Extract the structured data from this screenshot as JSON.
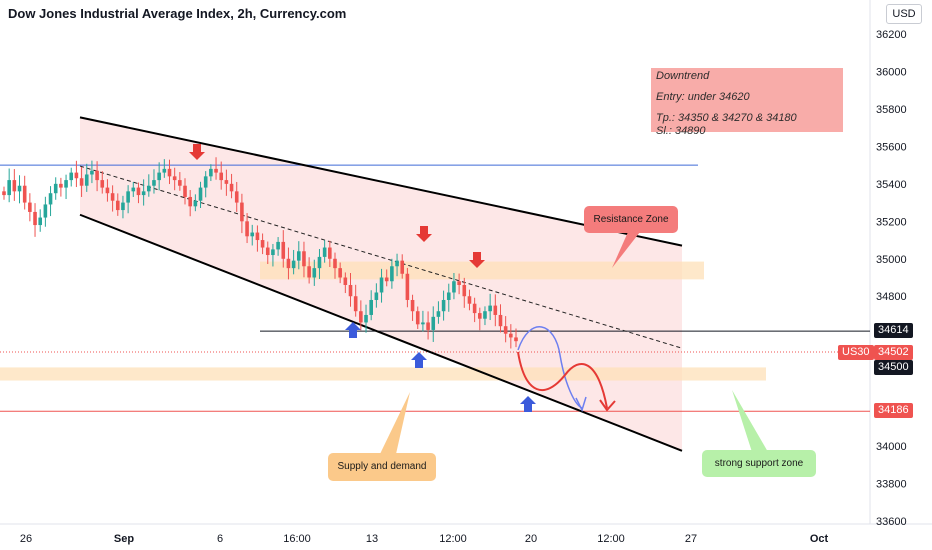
{
  "header": {
    "title": "Dow Jones Industrial Average Index, 2h, Currency.com",
    "currency_button": "USD"
  },
  "note": {
    "line1": "Downtrend",
    "line2": "Entry: under 34620",
    "line3": "Tp.:  34350 & 34270 & 34180",
    "line4": "Sl.: 34890"
  },
  "callouts": {
    "resistance": "Resistance Zone",
    "supply": "Supply and demand",
    "support": "strong support zone"
  },
  "price_labels": {
    "symbol": "US30",
    "current": "34502",
    "level_upper": "34614",
    "level_mid": "34500",
    "level_low": "34186"
  },
  "colors": {
    "up": "#26a69a",
    "down": "#ef5350",
    "channel_fill": "#fde3e3",
    "zone": "#fde0b8",
    "note_bg": "#f8a5a2",
    "resistance_callout": "#f47c7c",
    "supply_callout": "#fbc98a",
    "support_callout": "#b7f0a9",
    "arrow_red": "#e53935",
    "arrow_blue": "#3b5bdb"
  },
  "chart_data": {
    "type": "candlestick",
    "title": "Dow Jones Industrial Average Index, 2h, Currency.com",
    "y_axis": {
      "ticks": [
        36200,
        36000,
        35800,
        35600,
        35400,
        35200,
        35000,
        34800,
        34600,
        34400,
        34200,
        34000,
        33800,
        33600
      ],
      "range": [
        33550,
        36270
      ]
    },
    "x_axis": {
      "ticks": [
        {
          "label": "26",
          "bold": false
        },
        {
          "label": "Sep",
          "bold": true
        },
        {
          "label": "6",
          "bold": false
        },
        {
          "label": "16:00",
          "bold": false
        },
        {
          "label": "13",
          "bold": false
        },
        {
          "label": "12:00",
          "bold": false
        },
        {
          "label": "20",
          "bold": false
        },
        {
          "label": "12:00",
          "bold": false
        },
        {
          "label": "27",
          "bold": false
        },
        {
          "label": "Oct",
          "bold": true
        }
      ]
    },
    "candles_close": [
      35340,
      35420,
      35360,
      35390,
      35300,
      35250,
      35180,
      35220,
      35290,
      35350,
      35400,
      35380,
      35420,
      35460,
      35430,
      35390,
      35450,
      35470,
      35420,
      35380,
      35350,
      35310,
      35260,
      35300,
      35360,
      35380,
      35340,
      35360,
      35390,
      35420,
      35460,
      35480,
      35440,
      35420,
      35390,
      35330,
      35280,
      35310,
      35380,
      35440,
      35480,
      35460,
      35420,
      35400,
      35360,
      35300,
      35200,
      35120,
      35140,
      35100,
      35060,
      35020,
      35050,
      35090,
      35000,
      34950,
      34990,
      35040,
      34960,
      34900,
      34950,
      35010,
      35060,
      35000,
      34950,
      34900,
      34860,
      34800,
      34720,
      34660,
      34700,
      34780,
      34820,
      34900,
      34880,
      34960,
      34990,
      34920,
      34780,
      34720,
      34650,
      34660,
      34620,
      34690,
      34720,
      34780,
      34820,
      34880,
      34860,
      34800,
      34760,
      34710,
      34680,
      34720,
      34750,
      34700,
      34640,
      34600,
      34580,
      34560
    ],
    "horizontal_levels": [
      {
        "value": 35500,
        "color": "blue"
      },
      {
        "value": 34614,
        "color": "black"
      },
      {
        "value": 34502,
        "color": "dotted-red"
      },
      {
        "value": 34186,
        "color": "red"
      }
    ],
    "zones": [
      {
        "name": "Resistance Zone",
        "from": 34890,
        "to": 34985
      },
      {
        "name": "Supply and demand",
        "from": 34350,
        "to": 34420
      }
    ],
    "channel": {
      "upper_start": 35755,
      "upper_end": 35070,
      "lower_start": 35235,
      "lower_end": 33975
    },
    "annotations": [
      "Resistance Zone",
      "Supply and demand",
      "strong support zone"
    ]
  }
}
